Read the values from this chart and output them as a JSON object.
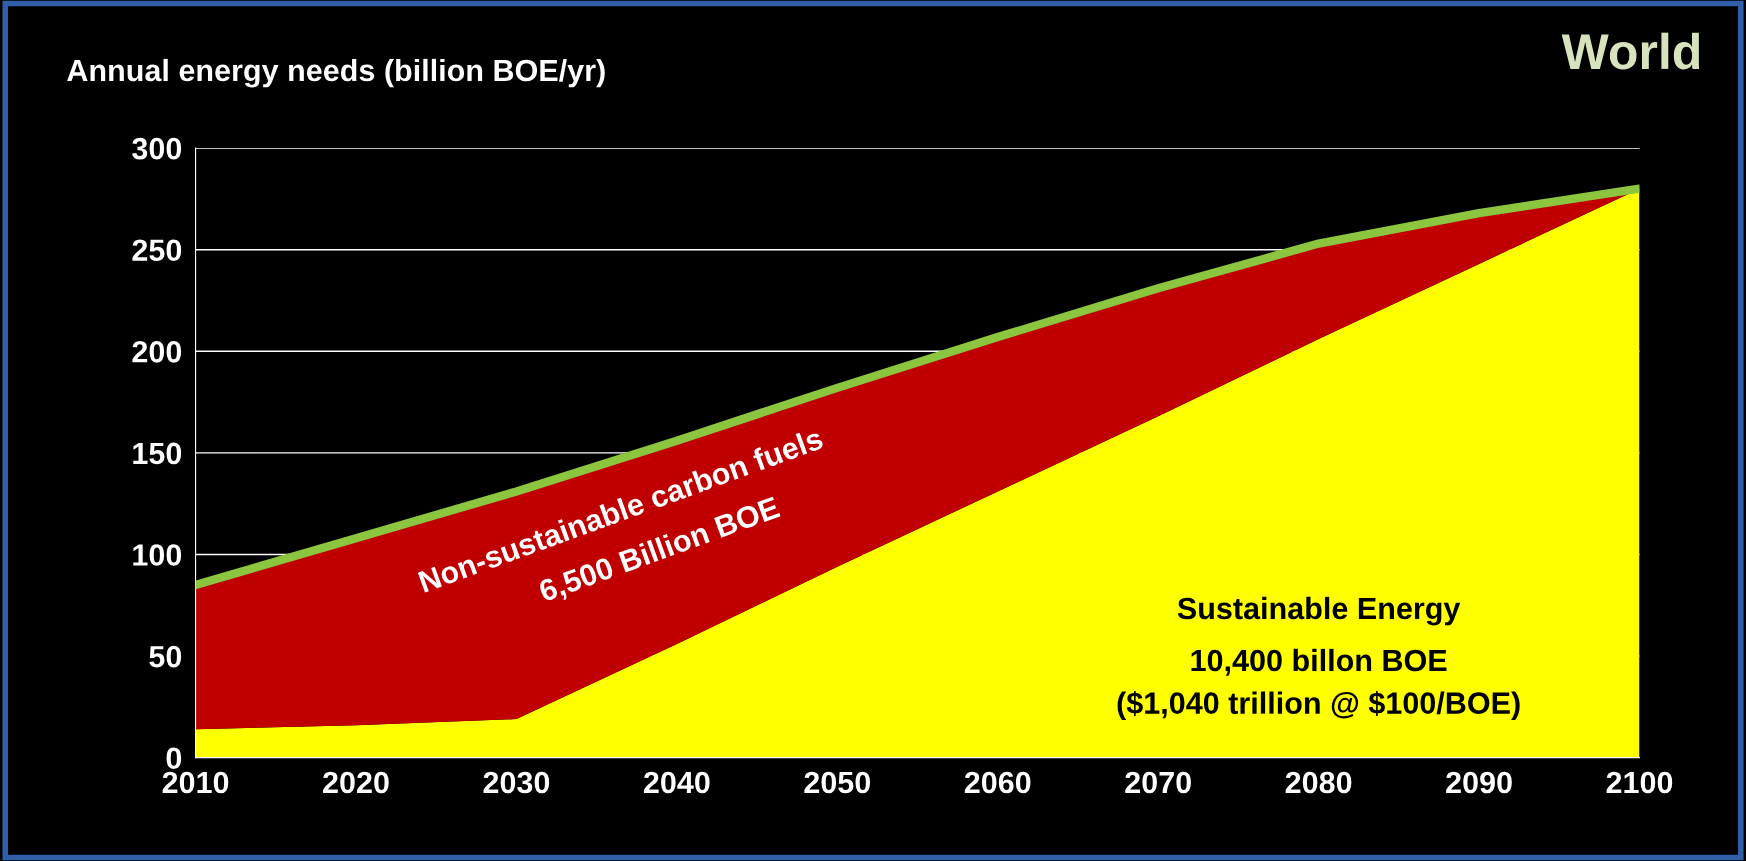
{
  "chart_data": {
    "type": "area",
    "stacked": true,
    "title": "World",
    "ylabel": "Annual energy needs (billion BOE/yr)",
    "x": [
      2010,
      2020,
      2030,
      2040,
      2050,
      2060,
      2070,
      2080,
      2090,
      2100
    ],
    "series": [
      {
        "name": "Sustainable Energy",
        "color": "#ffff00",
        "values": [
          14,
          16,
          19,
          56,
          94,
          131,
          168,
          206,
          243,
          280
        ]
      },
      {
        "name": "Non-sustainable carbon fuels",
        "color": "#c00000",
        "values": [
          71,
          92,
          112,
          100,
          88,
          76,
          63,
          47,
          25,
          0
        ]
      },
      {
        "type": "line",
        "color": "#8cc63e",
        "values": [
          85,
          108,
          131,
          156,
          182,
          207,
          231,
          253,
          268,
          280
        ]
      }
    ],
    "xlim": [
      2010,
      2100
    ],
    "xticks": [
      2010,
      2020,
      2030,
      2040,
      2050,
      2060,
      2070,
      2080,
      2090,
      2100
    ],
    "ylim": [
      0,
      300
    ],
    "yticks": [
      0,
      50,
      100,
      150,
      200,
      250,
      300
    ],
    "grid": "y",
    "annotations": [
      "10,400 billon BOE\n($1,040 trillion @ $100/BOE)",
      "6,500 Billion BOE"
    ]
  }
}
